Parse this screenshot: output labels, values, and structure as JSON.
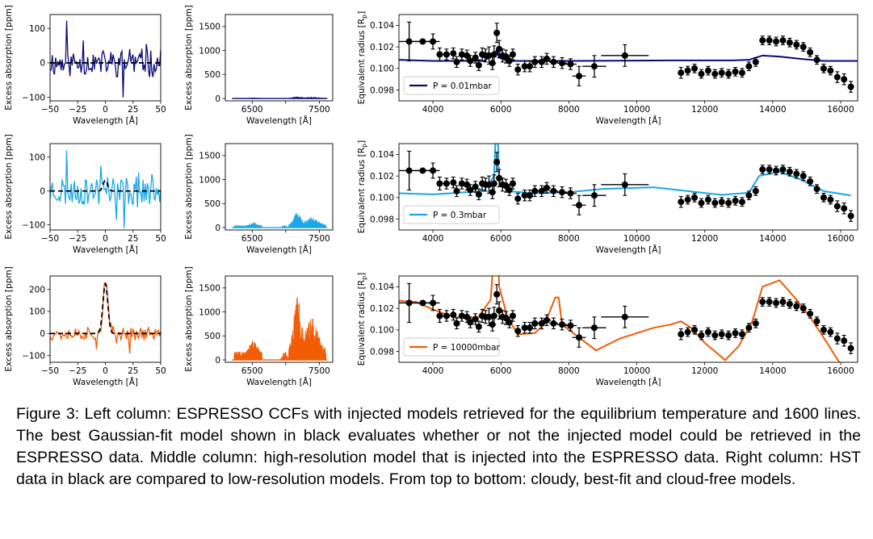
{
  "caption": "Figure 3: Left column: ESPRESSO CCFs with injected models retrieved for the equilibrium temperature and 1600 lines. The best Gaussian-fit model shown in black evaluates whether or not the injected model could be retrieved in the ESPRESSO data. Middle column: high-resolution model that is injected into the ESPRESSO data. Right column: HST data in black are compared to low-resolution models. From top to bottom: cloudy, best-fit and cloud-free models.",
  "colors": [
    "#0a0a78",
    "#1aa7e6",
    "#f25c05"
  ],
  "chart_data": [
    {
      "id": "ccf-1",
      "type": "line",
      "xlabel": "Wavelength [Å]",
      "ylabel": "Excess absorption [ppm]",
      "xlim": [
        -50,
        50
      ],
      "ylim": [
        -110,
        140
      ],
      "xticks": [
        -50,
        -25,
        0,
        25,
        50
      ],
      "yticks": [
        -100,
        0,
        100
      ],
      "color": "#0a0a78",
      "gauss": {
        "amp": 0,
        "sigma": 2
      },
      "noise": 35,
      "seed": 11,
      "spikes": [
        [
          -35,
          122
        ],
        [
          -20,
          65
        ],
        [
          16,
          -100
        ],
        [
          22,
          40
        ],
        [
          37,
          55
        ]
      ]
    },
    {
      "id": "hr-1",
      "type": "area",
      "xlabel": "Wavelength [Å]",
      "ylabel": "Excess absorption [ppm]",
      "xlim": [
        6100,
        7700
      ],
      "ylim": [
        -50,
        1750
      ],
      "xticks": [
        6500,
        7000,
        7500
      ],
      "xticklabels": [
        "6500",
        "",
        "7500"
      ],
      "yticks": [
        0,
        500,
        1000,
        1500
      ],
      "color": "#0a0a78",
      "hr_scale": 0.03
    },
    {
      "id": "hst-1",
      "type": "line",
      "xlabel": "Wavelength [Å]",
      "ylabel": "Equivalent radius [Rp]",
      "xlim": [
        3000,
        16500
      ],
      "ylim": [
        0.097,
        0.105
      ],
      "xticks": [
        4000,
        6000,
        8000,
        10000,
        12000,
        14000,
        16000
      ],
      "yticks": [
        0.098,
        0.1,
        0.102,
        0.104
      ],
      "color": "#0a0a78",
      "legend": "P = 0.01mbar",
      "model": "cloudy"
    },
    {
      "id": "ccf-2",
      "type": "line",
      "xlabel": "Wavelength [Å]",
      "ylabel": "Excess absorption [ppm]",
      "xlim": [
        -50,
        50
      ],
      "ylim": [
        -115,
        140
      ],
      "xticks": [
        -50,
        -25,
        0,
        25,
        50
      ],
      "yticks": [
        -100,
        0,
        100
      ],
      "color": "#1aa7e6",
      "gauss": {
        "amp": 32,
        "sigma": 2
      },
      "noise": 40,
      "seed": 23,
      "spikes": [
        [
          -35,
          120
        ],
        [
          -4,
          75
        ],
        [
          10,
          -85
        ],
        [
          17,
          -110
        ],
        [
          30,
          55
        ]
      ]
    },
    {
      "id": "hr-2",
      "type": "area",
      "xlabel": "Wavelength [Å]",
      "ylabel": "Excess absorption [ppm]",
      "xlim": [
        6100,
        7700
      ],
      "ylim": [
        -50,
        1750
      ],
      "xticks": [
        6500,
        7000,
        7500
      ],
      "xticklabels": [
        "6500",
        "",
        "7500"
      ],
      "yticks": [
        0,
        500,
        1000,
        1500
      ],
      "color": "#1aa7e6",
      "hr_scale": 0.25
    },
    {
      "id": "hst-2",
      "type": "line",
      "xlabel": "Wavelength [Å]",
      "ylabel": "Equivalent radius [Rp]",
      "xlim": [
        3000,
        16500
      ],
      "ylim": [
        0.097,
        0.105
      ],
      "xticks": [
        4000,
        6000,
        8000,
        10000,
        12000,
        14000,
        16000
      ],
      "yticks": [
        0.098,
        0.1,
        0.102,
        0.104
      ],
      "color": "#1aa7e6",
      "legend": "P = 0.3mbar",
      "model": "best"
    },
    {
      "id": "ccf-3",
      "type": "line",
      "xlabel": "Wavelength [Å]",
      "ylabel": "Excess absorption [ppm]",
      "xlim": [
        -50,
        50
      ],
      "ylim": [
        -130,
        260
      ],
      "xticks": [
        -50,
        -25,
        0,
        25,
        50
      ],
      "yticks": [
        -100,
        0,
        100,
        200
      ],
      "color": "#f25c05",
      "gauss": {
        "amp": 225,
        "sigma": 2.2
      },
      "noise": 28,
      "seed": 37,
      "spikes": [
        [
          -8,
          -70
        ],
        [
          22,
          -90
        ],
        [
          10,
          -45
        ]
      ]
    },
    {
      "id": "hr-3",
      "type": "area",
      "xlabel": "Wavelength [Å]",
      "ylabel": "Excess absorption [ppm]",
      "xlim": [
        6100,
        7700
      ],
      "ylim": [
        -50,
        1750
      ],
      "xticks": [
        6500,
        7000,
        7500
      ],
      "xticklabels": [
        "6500",
        "",
        "7500"
      ],
      "yticks": [
        0,
        500,
        1000,
        1500
      ],
      "color": "#f25c05",
      "hr_scale": 1.0
    },
    {
      "id": "hst-3",
      "type": "line",
      "xlabel": "Wavelength [Å]",
      "ylabel": "Equivalent radius [Rp]",
      "xlim": [
        3000,
        16500
      ],
      "ylim": [
        0.097,
        0.105
      ],
      "xticks": [
        4000,
        6000,
        8000,
        10000,
        12000,
        14000,
        16000
      ],
      "yticks": [
        0.098,
        0.1,
        0.102,
        0.104
      ],
      "color": "#f25c05",
      "legend": "P = 10000mbar",
      "model": "clear"
    }
  ],
  "hst_points": [
    [
      3300,
      0.1025,
      350,
      0.0018
    ],
    [
      3700,
      0.1025,
      250,
      0.0
    ],
    [
      4000,
      0.1025,
      200,
      0.0007
    ],
    [
      4200,
      0.1013,
      100,
      0.0006
    ],
    [
      4400,
      0.1013,
      100,
      0.0005
    ],
    [
      4600,
      0.1014,
      80,
      0.0005
    ],
    [
      4700,
      0.1006,
      60,
      0.0005
    ],
    [
      4850,
      0.1013,
      80,
      0.0005
    ],
    [
      5000,
      0.1012,
      80,
      0.0005
    ],
    [
      5100,
      0.1007,
      60,
      0.0005
    ],
    [
      5250,
      0.101,
      70,
      0.0005
    ],
    [
      5350,
      0.1003,
      60,
      0.0005
    ],
    [
      5450,
      0.1013,
      60,
      0.0006
    ],
    [
      5550,
      0.1012,
      60,
      0.0006
    ],
    [
      5650,
      0.1012,
      50,
      0.0008
    ],
    [
      5750,
      0.1005,
      50,
      0.0006
    ],
    [
      5800,
      0.1013,
      50,
      0.0008
    ],
    [
      5880,
      0.1033,
      40,
      0.0009
    ],
    [
      5950,
      0.1018,
      50,
      0.0008
    ],
    [
      6050,
      0.1012,
      60,
      0.0006
    ],
    [
      6150,
      0.1011,
      60,
      0.0006
    ],
    [
      6250,
      0.1007,
      60,
      0.0005
    ],
    [
      6350,
      0.1013,
      60,
      0.0005
    ],
    [
      6500,
      0.0999,
      80,
      0.0005
    ],
    [
      6700,
      0.1002,
      90,
      0.0005
    ],
    [
      6850,
      0.1002,
      90,
      0.0005
    ],
    [
      7000,
      0.1006,
      100,
      0.0005
    ],
    [
      7200,
      0.1006,
      120,
      0.0005
    ],
    [
      7350,
      0.1009,
      120,
      0.0005
    ],
    [
      7550,
      0.1006,
      130,
      0.0005
    ],
    [
      7800,
      0.1005,
      150,
      0.0005
    ],
    [
      8050,
      0.1004,
      180,
      0.0005
    ],
    [
      8300,
      0.0993,
      200,
      0.0009
    ],
    [
      8750,
      0.1002,
      350,
      0.001
    ],
    [
      9650,
      0.1012,
      700,
      0.001
    ],
    [
      11300,
      0.0996,
      80,
      0.0005
    ],
    [
      11500,
      0.0998,
      80,
      0.0004
    ],
    [
      11700,
      0.1,
      80,
      0.0004
    ],
    [
      11900,
      0.0995,
      80,
      0.0004
    ],
    [
      12100,
      0.0998,
      80,
      0.0004
    ],
    [
      12300,
      0.0995,
      80,
      0.0004
    ],
    [
      12500,
      0.0996,
      80,
      0.0004
    ],
    [
      12700,
      0.0995,
      80,
      0.0004
    ],
    [
      12900,
      0.0997,
      80,
      0.0004
    ],
    [
      13100,
      0.0996,
      80,
      0.0004
    ],
    [
      13300,
      0.1002,
      80,
      0.0004
    ],
    [
      13500,
      0.1006,
      80,
      0.0004
    ],
    [
      13700,
      0.1026,
      80,
      0.0004
    ],
    [
      13900,
      0.1026,
      80,
      0.0004
    ],
    [
      14100,
      0.1025,
      80,
      0.0004
    ],
    [
      14300,
      0.1026,
      80,
      0.0004
    ],
    [
      14500,
      0.1024,
      80,
      0.0004
    ],
    [
      14700,
      0.1022,
      80,
      0.0004
    ],
    [
      14900,
      0.102,
      80,
      0.0004
    ],
    [
      15100,
      0.1015,
      80,
      0.0004
    ],
    [
      15300,
      0.1008,
      80,
      0.0004
    ],
    [
      15500,
      0.1,
      80,
      0.0004
    ],
    [
      15700,
      0.0998,
      80,
      0.0004
    ],
    [
      15900,
      0.0992,
      80,
      0.0005
    ],
    [
      16100,
      0.099,
      80,
      0.0005
    ],
    [
      16300,
      0.0983,
      80,
      0.0005
    ]
  ]
}
